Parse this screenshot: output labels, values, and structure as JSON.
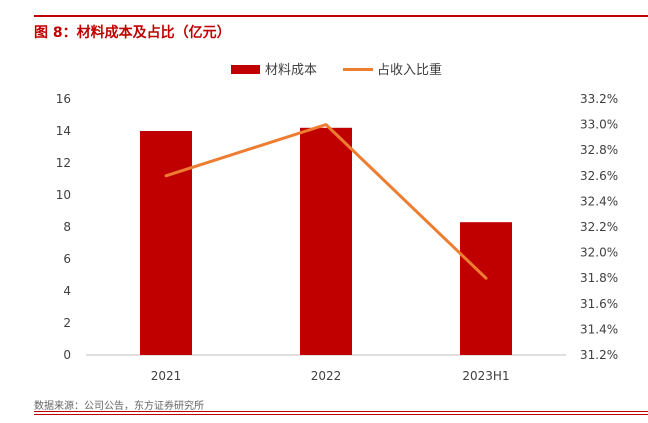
{
  "header": {
    "title": "图 8：材料成本及占比（亿元）"
  },
  "footer": {
    "source": "数据来源：公司公告，东方证券研究所"
  },
  "chart_data": {
    "type": "bar",
    "title": "图 8：材料成本及占比（亿元）",
    "categories": [
      "2021",
      "2022",
      "2023H1"
    ],
    "series": [
      {
        "name": "材料成本",
        "type": "bar",
        "axis": "left",
        "values": [
          14.0,
          14.2,
          8.3
        ],
        "color": "#c00000"
      },
      {
        "name": "占收入比重",
        "type": "line",
        "axis": "right",
        "values": [
          32.6,
          33.0,
          31.8
        ],
        "color": "#ed7d31"
      }
    ],
    "y_left": {
      "min": 0,
      "max": 16,
      "step": 2,
      "ticks": [
        "0",
        "2",
        "4",
        "6",
        "8",
        "10",
        "12",
        "14",
        "16"
      ]
    },
    "y_right": {
      "min": 31.2,
      "max": 33.2,
      "step": 0.2,
      "ticks": [
        "31.2%",
        "31.4%",
        "31.6%",
        "31.8%",
        "32.0%",
        "32.2%",
        "32.4%",
        "32.6%",
        "32.8%",
        "33.0%",
        "33.2%"
      ]
    },
    "legend_position": "top-center",
    "grid": false
  }
}
